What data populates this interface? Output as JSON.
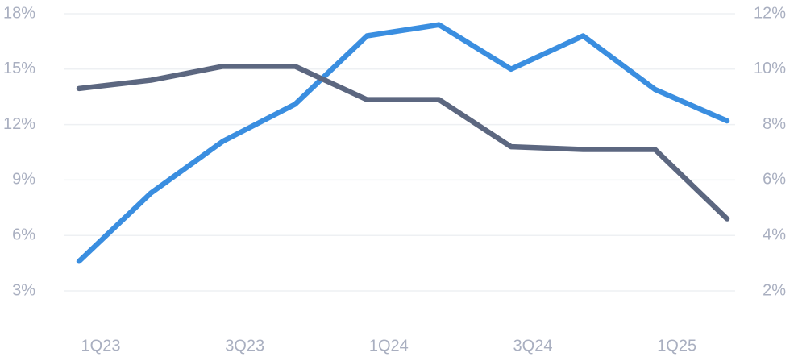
{
  "chart_data": {
    "type": "line",
    "categories": [
      "1Q23",
      null,
      "3Q23",
      null,
      "1Q24",
      null,
      "3Q24",
      null,
      "1Q25",
      null
    ],
    "series": [
      {
        "color": "#3a8ee0",
        "values": [
          4.6,
          8.3,
          11.1,
          13.1,
          16.8,
          17.4,
          15.0,
          16.8,
          13.9,
          12.2
        ]
      },
      {
        "color": "#5c6780",
        "axis": "y2",
        "values": [
          9.3,
          9.6,
          10.1,
          10.1,
          8.9,
          8.9,
          7.2,
          7.1,
          7.1,
          4.6
        ]
      }
    ],
    "ylim": [
      3,
      18
    ],
    "yticks": [
      {
        "value": 3,
        "label": "3%"
      },
      {
        "value": 6,
        "label": "6%"
      },
      {
        "value": 9,
        "label": "9%"
      },
      {
        "value": 12,
        "label": "12%"
      },
      {
        "value": 15,
        "label": "15%"
      },
      {
        "value": 18,
        "label": "18%"
      }
    ],
    "y2lim": [
      2,
      12
    ],
    "y2ticks": [
      {
        "value": 2,
        "label": "2%"
      },
      {
        "value": 4,
        "label": "4%"
      },
      {
        "value": 6,
        "label": "6%"
      },
      {
        "value": 8,
        "label": "8%"
      },
      {
        "value": 10,
        "label": "10%"
      },
      {
        "value": 12,
        "label": "12%"
      }
    ],
    "grid": true
  }
}
